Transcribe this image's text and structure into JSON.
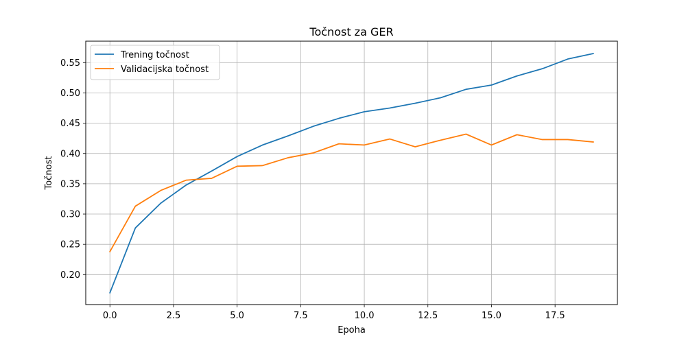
{
  "chart_data": {
    "type": "line",
    "title": "Točnost za GER",
    "xlabel": "Epoha",
    "ylabel": "Točnost",
    "xlim": [
      -0.95,
      19.95
    ],
    "ylim": [
      0.1505,
      0.5855
    ],
    "grid": true,
    "legend": "top-left",
    "x": [
      0,
      1,
      2,
      3,
      4,
      5,
      6,
      7,
      8,
      9,
      10,
      11,
      12,
      13,
      14,
      15,
      16,
      17,
      18,
      19
    ],
    "x_ticks": [
      "0.0",
      "2.5",
      "5.0",
      "7.5",
      "10.0",
      "12.5",
      "15.0",
      "17.5"
    ],
    "x_tick_values": [
      0,
      2.5,
      5,
      7.5,
      10,
      12.5,
      15,
      17.5
    ],
    "y_ticks": [
      "0.20",
      "0.25",
      "0.30",
      "0.35",
      "0.40",
      "0.45",
      "0.50",
      "0.55"
    ],
    "y_tick_values": [
      0.2,
      0.25,
      0.3,
      0.35,
      0.4,
      0.45,
      0.5,
      0.55
    ],
    "series": [
      {
        "name": "Trening točnost",
        "color": "#1f77b4",
        "values": [
          0.17,
          0.277,
          0.318,
          0.348,
          0.371,
          0.395,
          0.414,
          0.429,
          0.445,
          0.458,
          0.469,
          0.475,
          0.483,
          0.492,
          0.506,
          0.513,
          0.528,
          0.54,
          0.556,
          0.565
        ]
      },
      {
        "name": "Validacijska točnost",
        "color": "#ff7f0e",
        "values": [
          0.238,
          0.313,
          0.339,
          0.356,
          0.359,
          0.379,
          0.38,
          0.393,
          0.401,
          0.416,
          0.414,
          0.424,
          0.411,
          0.422,
          0.432,
          0.414,
          0.431,
          0.423,
          0.423,
          0.419
        ]
      }
    ]
  }
}
